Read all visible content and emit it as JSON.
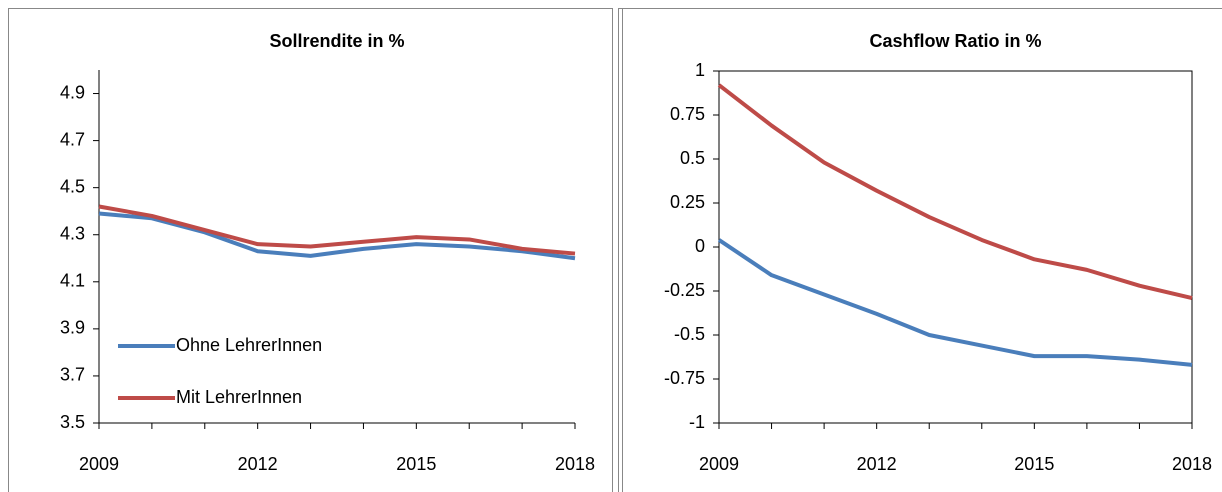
{
  "chart_data": [
    {
      "type": "line",
      "title": "Sollrendite in %",
      "x": [
        2009,
        2010,
        2011,
        2012,
        2013,
        2014,
        2015,
        2016,
        2017,
        2018
      ],
      "series": [
        {
          "name": "Ohne LehrerInnen",
          "color": "#4a7ebb",
          "values": [
            4.39,
            4.37,
            4.31,
            4.23,
            4.21,
            4.24,
            4.26,
            4.25,
            4.23,
            4.2
          ]
        },
        {
          "name": "Mit LehrerInnen",
          "color": "#be4b48",
          "values": [
            4.42,
            4.38,
            4.32,
            4.26,
            4.25,
            4.27,
            4.29,
            4.28,
            4.24,
            4.22
          ]
        }
      ],
      "xlim": [
        2009,
        2018
      ],
      "xticks": [
        2009,
        2012,
        2015,
        2018
      ],
      "ylim": [
        3.5,
        5.0
      ],
      "yticks": [
        3.5,
        3.7,
        3.9,
        4.1,
        4.3,
        4.5,
        4.7,
        4.9
      ],
      "legend": "lower left"
    },
    {
      "type": "line",
      "title": "Cashflow Ratio in %",
      "x": [
        2009,
        2010,
        2011,
        2012,
        2013,
        2014,
        2015,
        2016,
        2017,
        2018
      ],
      "series": [
        {
          "color": "#4a7ebb",
          "values": [
            0.04,
            -0.16,
            -0.27,
            -0.38,
            -0.5,
            -0.56,
            -0.62,
            -0.62,
            -0.64,
            -0.67
          ]
        },
        {
          "color": "#be4b48",
          "values": [
            0.92,
            0.69,
            0.48,
            0.32,
            0.17,
            0.04,
            -0.07,
            -0.13,
            -0.22,
            -0.29
          ]
        }
      ],
      "xlim": [
        2009,
        2018
      ],
      "xticks": [
        2009,
        2012,
        2015,
        2018
      ],
      "ylim": [
        -1,
        1
      ],
      "yticks": [
        -1,
        -0.75,
        -0.5,
        -0.25,
        0,
        0.25,
        0.5,
        0.75,
        1
      ]
    }
  ]
}
